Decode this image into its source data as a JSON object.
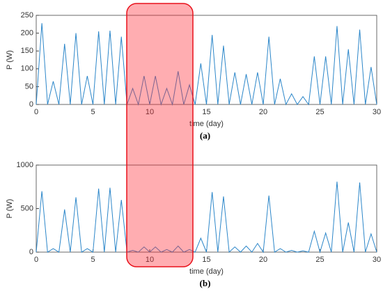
{
  "chart_data": [
    {
      "type": "line",
      "caption": "(a)",
      "xlabel": "time (day)",
      "ylabel": "P (W)",
      "x": [
        0,
        0.5,
        1,
        1.5,
        2,
        2.5,
        3,
        3.5,
        4,
        4.5,
        5,
        5.5,
        6,
        6.5,
        7,
        7.5,
        8,
        8.5,
        9,
        9.5,
        10,
        10.5,
        11,
        11.5,
        12,
        12.5,
        13,
        13.5,
        14,
        14.5,
        15,
        15.5,
        16,
        16.5,
        17,
        17.5,
        18,
        18.5,
        19,
        19.5,
        20,
        20.5,
        21,
        21.5,
        22,
        22.5,
        23,
        23.5,
        24,
        24.5,
        25,
        25.5,
        26,
        26.5,
        27,
        27.5,
        28,
        28.5,
        29,
        29.5,
        30
      ],
      "series": [
        {
          "name": "P",
          "color": "#2b86c9",
          "values": [
            0,
            228,
            0,
            65,
            0,
            170,
            0,
            200,
            0,
            80,
            0,
            205,
            0,
            207,
            0,
            190,
            0,
            45,
            0,
            80,
            0,
            80,
            0,
            45,
            0,
            93,
            0,
            55,
            0,
            115,
            0,
            195,
            0,
            165,
            0,
            90,
            0,
            85,
            0,
            90,
            0,
            190,
            0,
            72,
            0,
            30,
            0,
            22,
            0,
            135,
            0,
            135,
            0,
            220,
            0,
            155,
            0,
            210,
            0,
            105,
            0
          ]
        }
      ],
      "xlim": [
        0,
        30
      ],
      "xticks": [
        0,
        5,
        10,
        15,
        20,
        25,
        30
      ],
      "ylim": [
        0,
        250
      ],
      "yticks": [
        0,
        50,
        100,
        150,
        200,
        250
      ]
    },
    {
      "type": "line",
      "caption": "(b)",
      "xlabel": "time (day)",
      "ylabel": "P (W)",
      "x": [
        0,
        0.5,
        1,
        1.5,
        2,
        2.5,
        3,
        3.5,
        4,
        4.5,
        5,
        5.5,
        6,
        6.5,
        7,
        7.5,
        8,
        8.5,
        9,
        9.5,
        10,
        10.5,
        11,
        11.5,
        12,
        12.5,
        13,
        13.5,
        14,
        14.5,
        15,
        15.5,
        16,
        16.5,
        17,
        17.5,
        18,
        18.5,
        19,
        19.5,
        20,
        20.5,
        21,
        21.5,
        22,
        22.5,
        23,
        23.5,
        24,
        24.5,
        25,
        25.5,
        26,
        26.5,
        27,
        27.5,
        28,
        28.5,
        29,
        29.5,
        30
      ],
      "series": [
        {
          "name": "P",
          "color": "#2b86c9",
          "values": [
            0,
            700,
            0,
            40,
            0,
            490,
            0,
            630,
            0,
            40,
            0,
            730,
            0,
            740,
            0,
            600,
            0,
            20,
            0,
            60,
            0,
            60,
            0,
            30,
            0,
            70,
            0,
            30,
            0,
            160,
            0,
            690,
            0,
            640,
            0,
            60,
            0,
            70,
            0,
            100,
            0,
            650,
            0,
            40,
            0,
            20,
            0,
            15,
            0,
            240,
            0,
            220,
            0,
            810,
            0,
            340,
            0,
            800,
            0,
            210,
            0
          ]
        }
      ],
      "xlim": [
        0,
        30
      ],
      "xticks": [
        0,
        5,
        10,
        15,
        20,
        25,
        30
      ],
      "ylim": [
        0,
        1000
      ],
      "yticks": [
        0,
        500,
        1000
      ]
    }
  ]
}
